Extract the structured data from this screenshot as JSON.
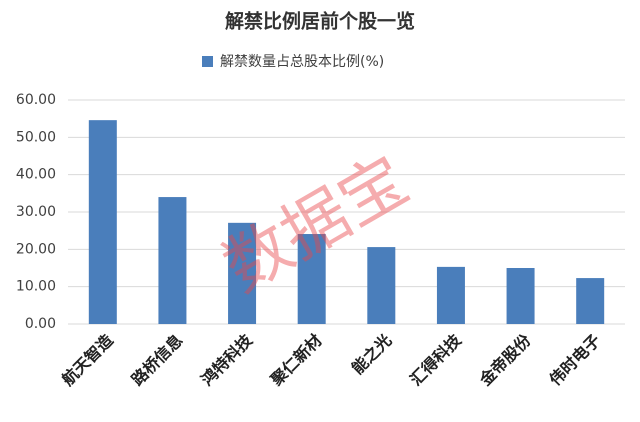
{
  "chart_data": {
    "type": "bar",
    "title": "解禁比例居前个股一览",
    "legend": "解禁数量占总股本比例(%)",
    "watermark": "数据宝",
    "categories": [
      "航天智造",
      "路桥信息",
      "鸿特科技",
      "聚仁新材",
      "能之光",
      "汇得科技",
      "金帝股份",
      "伟时电子"
    ],
    "values": [
      54.6,
      34.0,
      27.1,
      24.1,
      20.6,
      15.3,
      15.0,
      12.3
    ],
    "color": "#4a7ebb",
    "ylim": [
      0,
      60
    ],
    "yticks": [
      {
        "value": 0,
        "label": "0.00"
      },
      {
        "value": 10,
        "label": "10.00"
      },
      {
        "value": 20,
        "label": "20.00"
      },
      {
        "value": 30,
        "label": "30.00"
      },
      {
        "value": 40,
        "label": "40.00"
      },
      {
        "value": 50,
        "label": "50.00"
      },
      {
        "value": 60,
        "label": "60.00"
      }
    ],
    "grid": true
  }
}
